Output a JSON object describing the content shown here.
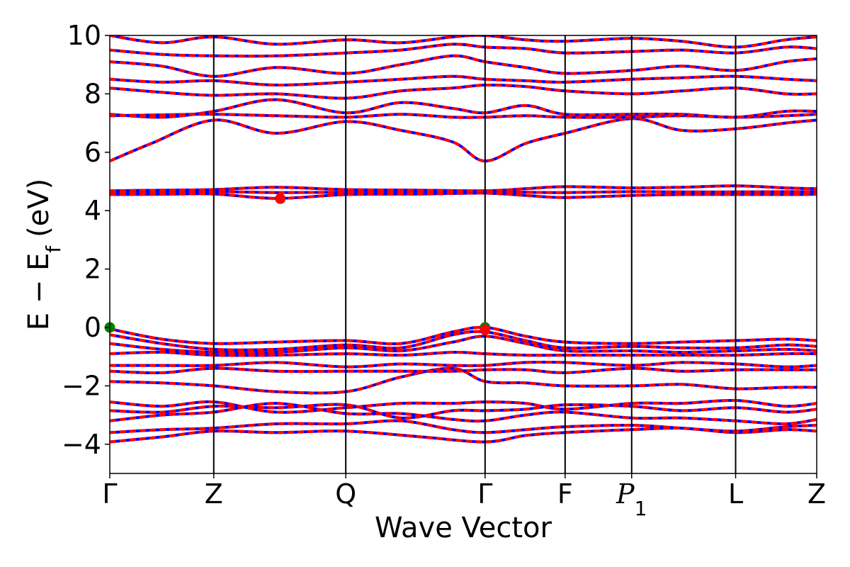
{
  "chart_data": {
    "type": "line",
    "title": "",
    "xlabel": "Wave Vector",
    "ylabel": "E − E",
    "ylabel_subscript": "f",
    "ylabel_unit": "(eV)",
    "ylim": [
      -5,
      10
    ],
    "yticks": [
      -4,
      -2,
      0,
      2,
      4,
      6,
      8,
      10
    ],
    "ytick_labels": [
      "−4",
      "−2",
      "0",
      "2",
      "4",
      "6",
      "8",
      "10"
    ],
    "xlim": [
      0,
      6.8
    ],
    "high_symmetry_points": [
      {
        "label": "Γ",
        "x": 0.0
      },
      {
        "label": "Z",
        "x": 1.0
      },
      {
        "label": "Q",
        "x": 2.27
      },
      {
        "label": "Γ",
        "x": 3.61
      },
      {
        "label": "F",
        "x": 4.38
      },
      {
        "label": "P",
        "subscript": "1",
        "x": 5.02
      },
      {
        "label": "L",
        "x": 6.02
      },
      {
        "label": "Z",
        "x": 6.8
      }
    ],
    "series": [
      {
        "color": "#0000ff",
        "style": "solid"
      },
      {
        "color": "#ff0000",
        "style": "dashed"
      }
    ],
    "bands": [
      [
        [
          0,
          -3.92
        ],
        [
          0.5,
          -3.75
        ],
        [
          1.0,
          -3.55
        ],
        [
          1.6,
          -3.6
        ],
        [
          2.27,
          -3.55
        ],
        [
          3.0,
          -3.75
        ],
        [
          3.61,
          -3.92
        ],
        [
          4.0,
          -3.7
        ],
        [
          4.38,
          -3.6
        ],
        [
          5.02,
          -3.5
        ],
        [
          5.5,
          -3.45
        ],
        [
          6.02,
          -3.6
        ],
        [
          6.5,
          -3.5
        ],
        [
          6.8,
          -3.55
        ]
      ],
      [
        [
          0,
          -3.6
        ],
        [
          0.5,
          -3.5
        ],
        [
          1.0,
          -3.45
        ],
        [
          1.6,
          -3.3
        ],
        [
          2.27,
          -3.3
        ],
        [
          2.8,
          -3.2
        ],
        [
          3.3,
          -3.5
        ],
        [
          3.61,
          -3.6
        ],
        [
          4.0,
          -3.5
        ],
        [
          4.38,
          -3.4
        ],
        [
          5.02,
          -3.35
        ],
        [
          5.5,
          -3.45
        ],
        [
          6.02,
          -3.55
        ],
        [
          6.5,
          -3.4
        ],
        [
          6.8,
          -3.35
        ]
      ],
      [
        [
          0,
          -3.2
        ],
        [
          0.5,
          -3.0
        ],
        [
          1.0,
          -2.9
        ],
        [
          1.6,
          -2.6
        ],
        [
          2.27,
          -2.95
        ],
        [
          2.8,
          -2.95
        ],
        [
          3.3,
          -3.15
        ],
        [
          3.61,
          -3.2
        ],
        [
          4.0,
          -3.0
        ],
        [
          4.38,
          -2.9
        ],
        [
          5.02,
          -3.1
        ],
        [
          5.5,
          -3.1
        ],
        [
          6.02,
          -3.2
        ],
        [
          6.5,
          -3.3
        ],
        [
          6.8,
          -3.15
        ]
      ],
      [
        [
          0,
          -2.85
        ],
        [
          0.5,
          -2.9
        ],
        [
          1.0,
          -2.7
        ],
        [
          1.6,
          -2.75
        ],
        [
          2.27,
          -2.65
        ],
        [
          2.8,
          -3.1
        ],
        [
          3.3,
          -2.85
        ],
        [
          3.61,
          -2.85
        ],
        [
          4.0,
          -2.8
        ],
        [
          4.38,
          -2.65
        ],
        [
          5.02,
          -2.7
        ],
        [
          5.5,
          -2.85
        ],
        [
          6.02,
          -2.75
        ],
        [
          6.5,
          -2.9
        ],
        [
          6.8,
          -2.8
        ]
      ],
      [
        [
          0,
          -2.55
        ],
        [
          0.5,
          -2.7
        ],
        [
          1.0,
          -2.55
        ],
        [
          1.6,
          -2.9
        ],
        [
          2.27,
          -2.75
        ],
        [
          2.8,
          -2.6
        ],
        [
          3.3,
          -2.6
        ],
        [
          3.61,
          -2.55
        ],
        [
          4.0,
          -2.6
        ],
        [
          4.38,
          -2.8
        ],
        [
          5.02,
          -2.6
        ],
        [
          5.5,
          -2.6
        ],
        [
          6.02,
          -2.5
        ],
        [
          6.5,
          -2.7
        ],
        [
          6.8,
          -2.6
        ]
      ],
      [
        [
          0,
          -1.85
        ],
        [
          0.5,
          -1.9
        ],
        [
          1.0,
          -2.0
        ],
        [
          1.6,
          -2.2
        ],
        [
          2.27,
          -2.2
        ],
        [
          2.8,
          -1.7
        ],
        [
          3.3,
          -1.4
        ],
        [
          3.61,
          -1.85
        ],
        [
          4.0,
          -1.9
        ],
        [
          4.38,
          -2.0
        ],
        [
          5.02,
          -2.0
        ],
        [
          5.5,
          -1.95
        ],
        [
          6.02,
          -2.1
        ],
        [
          6.5,
          -2.05
        ],
        [
          6.8,
          -2.05
        ]
      ],
      [
        [
          0,
          -1.5
        ],
        [
          0.5,
          -1.55
        ],
        [
          1.0,
          -1.4
        ],
        [
          1.6,
          -1.5
        ],
        [
          2.27,
          -1.5
        ],
        [
          2.8,
          -1.5
        ],
        [
          3.3,
          -1.5
        ],
        [
          3.61,
          -1.45
        ],
        [
          4.0,
          -1.45
        ],
        [
          4.38,
          -1.55
        ],
        [
          5.02,
          -1.4
        ],
        [
          5.5,
          -1.5
        ],
        [
          6.02,
          -1.45
        ],
        [
          6.5,
          -1.45
        ],
        [
          6.8,
          -1.45
        ]
      ],
      [
        [
          0,
          -1.3
        ],
        [
          0.5,
          -1.3
        ],
        [
          1.0,
          -1.3
        ],
        [
          1.6,
          -1.2
        ],
        [
          2.27,
          -1.35
        ],
        [
          2.8,
          -1.25
        ],
        [
          3.3,
          -1.3
        ],
        [
          3.61,
          -1.3
        ],
        [
          4.0,
          -1.2
        ],
        [
          4.38,
          -1.2
        ],
        [
          5.02,
          -1.3
        ],
        [
          5.5,
          -1.2
        ],
        [
          6.02,
          -1.25
        ],
        [
          6.5,
          -1.35
        ],
        [
          6.8,
          -1.3
        ]
      ],
      [
        [
          0,
          -0.9
        ],
        [
          0.5,
          -0.85
        ],
        [
          1.0,
          -0.95
        ],
        [
          1.6,
          -0.95
        ],
        [
          2.27,
          -0.9
        ],
        [
          2.8,
          -0.95
        ],
        [
          3.3,
          -0.85
        ],
        [
          3.61,
          -0.9
        ],
        [
          4.0,
          -0.95
        ],
        [
          4.38,
          -0.95
        ],
        [
          5.02,
          -0.95
        ],
        [
          5.5,
          -0.95
        ],
        [
          6.02,
          -0.95
        ],
        [
          6.5,
          -0.9
        ],
        [
          6.8,
          -0.9
        ]
      ],
      [
        [
          0,
          -0.55
        ],
        [
          0.5,
          -0.75
        ],
        [
          1.0,
          -0.85
        ],
        [
          1.6,
          -0.85
        ],
        [
          2.27,
          -0.7
        ],
        [
          2.8,
          -0.8
        ],
        [
          3.3,
          -0.5
        ],
        [
          3.61,
          -0.3
        ],
        [
          4.0,
          -0.55
        ],
        [
          4.38,
          -0.8
        ],
        [
          5.02,
          -0.8
        ],
        [
          5.5,
          -0.85
        ],
        [
          6.02,
          -0.8
        ],
        [
          6.5,
          -0.75
        ],
        [
          6.8,
          -0.8
        ]
      ],
      [
        [
          0,
          -0.25
        ],
        [
          0.5,
          -0.55
        ],
        [
          1.0,
          -0.75
        ],
        [
          1.6,
          -0.75
        ],
        [
          2.27,
          -0.6
        ],
        [
          2.8,
          -0.7
        ],
        [
          3.3,
          -0.25
        ],
        [
          3.61,
          -0.15
        ],
        [
          4.0,
          -0.45
        ],
        [
          4.38,
          -0.7
        ],
        [
          5.02,
          -0.65
        ],
        [
          5.5,
          -0.7
        ],
        [
          6.02,
          -0.7
        ],
        [
          6.5,
          -0.6
        ],
        [
          6.8,
          -0.65
        ]
      ],
      [
        [
          0,
          -0.05
        ],
        [
          0.5,
          -0.4
        ],
        [
          1.0,
          -0.55
        ],
        [
          1.6,
          -0.5
        ],
        [
          2.27,
          -0.45
        ],
        [
          2.8,
          -0.55
        ],
        [
          3.3,
          -0.15
        ],
        [
          3.61,
          0.0
        ],
        [
          4.0,
          -0.3
        ],
        [
          4.38,
          -0.5
        ],
        [
          5.02,
          -0.55
        ],
        [
          5.5,
          -0.5
        ],
        [
          6.02,
          -0.45
        ],
        [
          6.5,
          -0.4
        ],
        [
          6.8,
          -0.45
        ]
      ],
      [
        [
          0,
          4.55
        ],
        [
          0.5,
          4.56
        ],
        [
          1.0,
          4.57
        ],
        [
          1.6,
          4.42
        ],
        [
          2.27,
          4.55
        ],
        [
          3.0,
          4.57
        ],
        [
          3.61,
          4.6
        ],
        [
          4.0,
          4.52
        ],
        [
          4.38,
          4.45
        ],
        [
          5.02,
          4.52
        ],
        [
          5.5,
          4.55
        ],
        [
          6.02,
          4.55
        ],
        [
          6.5,
          4.55
        ],
        [
          6.8,
          4.56
        ]
      ],
      [
        [
          0,
          4.62
        ],
        [
          0.5,
          4.63
        ],
        [
          1.0,
          4.65
        ],
        [
          1.6,
          4.62
        ],
        [
          2.27,
          4.63
        ],
        [
          3.0,
          4.64
        ],
        [
          3.61,
          4.65
        ],
        [
          4.0,
          4.63
        ],
        [
          4.38,
          4.62
        ],
        [
          5.02,
          4.65
        ],
        [
          5.5,
          4.64
        ],
        [
          6.02,
          4.64
        ],
        [
          6.5,
          4.65
        ],
        [
          6.8,
          4.65
        ]
      ],
      [
        [
          0,
          4.68
        ],
        [
          0.5,
          4.7
        ],
        [
          1.0,
          4.72
        ],
        [
          1.6,
          4.8
        ],
        [
          2.27,
          4.72
        ],
        [
          3.0,
          4.7
        ],
        [
          3.61,
          4.68
        ],
        [
          4.0,
          4.75
        ],
        [
          4.38,
          4.82
        ],
        [
          5.02,
          4.78
        ],
        [
          5.5,
          4.8
        ],
        [
          6.02,
          4.85
        ],
        [
          6.5,
          4.78
        ],
        [
          6.8,
          4.75
        ]
      ],
      [
        [
          0,
          5.7
        ],
        [
          0.4,
          6.3
        ],
        [
          1.0,
          7.1
        ],
        [
          1.6,
          6.65
        ],
        [
          2.27,
          7.05
        ],
        [
          2.8,
          6.75
        ],
        [
          3.3,
          6.35
        ],
        [
          3.61,
          5.7
        ],
        [
          4.0,
          6.3
        ],
        [
          4.38,
          6.65
        ],
        [
          5.02,
          7.15
        ],
        [
          5.5,
          6.75
        ],
        [
          6.02,
          6.8
        ],
        [
          6.5,
          7.0
        ],
        [
          6.8,
          7.1
        ]
      ],
      [
        [
          0,
          7.25
        ],
        [
          0.5,
          7.28
        ],
        [
          1.0,
          7.3
        ],
        [
          1.6,
          7.25
        ],
        [
          2.27,
          7.2
        ],
        [
          2.8,
          7.3
        ],
        [
          3.3,
          7.2
        ],
        [
          3.61,
          7.2
        ],
        [
          4.0,
          7.25
        ],
        [
          4.38,
          7.2
        ],
        [
          5.02,
          7.2
        ],
        [
          5.5,
          7.25
        ],
        [
          6.02,
          7.2
        ],
        [
          6.5,
          7.25
        ],
        [
          6.8,
          7.3
        ]
      ],
      [
        [
          0,
          7.3
        ],
        [
          0.5,
          7.2
        ],
        [
          1.0,
          7.4
        ],
        [
          1.6,
          7.8
        ],
        [
          2.27,
          7.35
        ],
        [
          2.8,
          7.7
        ],
        [
          3.3,
          7.5
        ],
        [
          3.61,
          7.35
        ],
        [
          4.0,
          7.6
        ],
        [
          4.38,
          7.3
        ],
        [
          5.02,
          7.3
        ],
        [
          5.5,
          7.3
        ],
        [
          6.02,
          7.2
        ],
        [
          6.5,
          7.4
        ],
        [
          6.8,
          7.4
        ]
      ],
      [
        [
          0,
          8.2
        ],
        [
          0.5,
          8.05
        ],
        [
          1.0,
          7.95
        ],
        [
          1.6,
          8.0
        ],
        [
          2.27,
          7.85
        ],
        [
          2.8,
          8.1
        ],
        [
          3.3,
          8.2
        ],
        [
          3.61,
          8.3
        ],
        [
          4.0,
          8.25
        ],
        [
          4.38,
          8.1
        ],
        [
          5.02,
          8.0
        ],
        [
          5.5,
          8.1
        ],
        [
          6.02,
          8.2
        ],
        [
          6.5,
          8.0
        ],
        [
          6.8,
          8.0
        ]
      ],
      [
        [
          0,
          8.5
        ],
        [
          0.5,
          8.4
        ],
        [
          1.0,
          8.45
        ],
        [
          1.6,
          8.3
        ],
        [
          2.27,
          8.4
        ],
        [
          2.8,
          8.5
        ],
        [
          3.3,
          8.6
        ],
        [
          3.61,
          8.5
        ],
        [
          4.0,
          8.45
        ],
        [
          4.38,
          8.4
        ],
        [
          5.02,
          8.5
        ],
        [
          5.5,
          8.55
        ],
        [
          6.02,
          8.6
        ],
        [
          6.5,
          8.5
        ],
        [
          6.8,
          8.45
        ]
      ],
      [
        [
          0,
          9.1
        ],
        [
          0.5,
          8.95
        ],
        [
          1.0,
          8.6
        ],
        [
          1.6,
          8.9
        ],
        [
          2.27,
          8.7
        ],
        [
          2.8,
          9.0
        ],
        [
          3.3,
          9.3
        ],
        [
          3.61,
          9.1
        ],
        [
          4.0,
          8.9
        ],
        [
          4.38,
          8.7
        ],
        [
          5.02,
          8.8
        ],
        [
          5.5,
          8.95
        ],
        [
          6.02,
          8.8
        ],
        [
          6.5,
          9.1
        ],
        [
          6.8,
          9.2
        ]
      ],
      [
        [
          0,
          9.5
        ],
        [
          0.5,
          9.35
        ],
        [
          1.0,
          9.3
        ],
        [
          1.6,
          9.3
        ],
        [
          2.27,
          9.4
        ],
        [
          2.8,
          9.5
        ],
        [
          3.3,
          9.7
        ],
        [
          3.61,
          9.6
        ],
        [
          4.0,
          9.55
        ],
        [
          4.38,
          9.4
        ],
        [
          5.02,
          9.45
        ],
        [
          5.5,
          9.5
        ],
        [
          6.02,
          9.4
        ],
        [
          6.5,
          9.6
        ],
        [
          6.8,
          9.55
        ]
      ],
      [
        [
          0,
          10.0
        ],
        [
          0.5,
          9.75
        ],
        [
          1.0,
          9.95
        ],
        [
          1.6,
          9.7
        ],
        [
          2.27,
          9.85
        ],
        [
          2.8,
          9.75
        ],
        [
          3.3,
          9.95
        ],
        [
          3.61,
          10.0
        ],
        [
          4.0,
          9.85
        ],
        [
          4.38,
          9.8
        ],
        [
          5.02,
          9.9
        ],
        [
          5.5,
          9.8
        ],
        [
          6.02,
          9.6
        ],
        [
          6.5,
          9.85
        ],
        [
          6.8,
          9.95
        ]
      ]
    ],
    "markers": [
      {
        "x": 1.64,
        "y": 4.41,
        "color": "#ff0000"
      },
      {
        "x": 0.0,
        "y": 0.0,
        "color": "#008000"
      },
      {
        "x": 3.61,
        "y": 0.0,
        "color": "#008000"
      },
      {
        "x": 3.61,
        "y": -0.08,
        "color": "#ff0000"
      }
    ]
  }
}
